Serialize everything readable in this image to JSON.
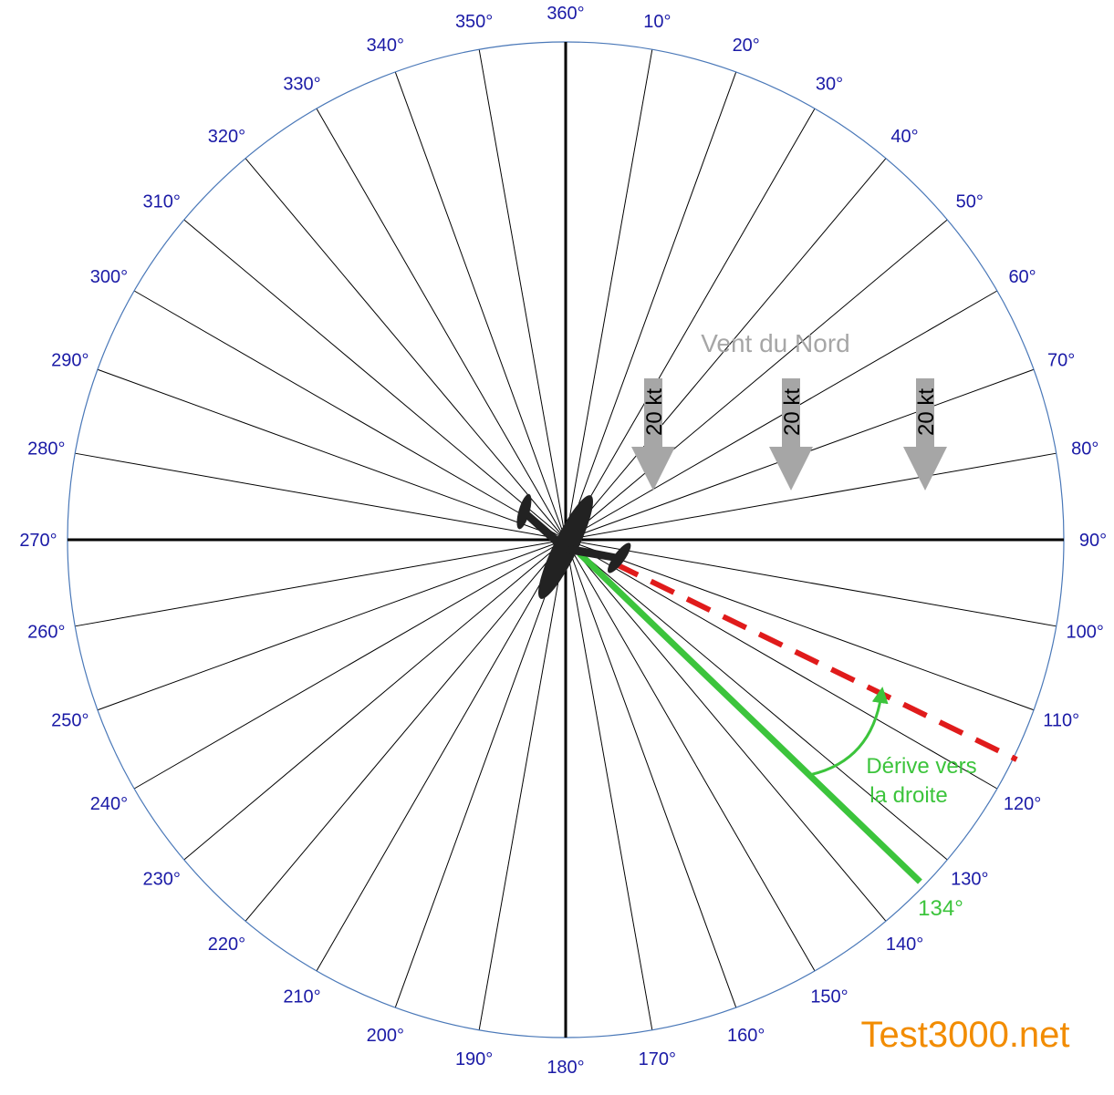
{
  "colors": {
    "degree_labels": "#1a1aa6",
    "circle": "#4a78b8",
    "wind": "#a6a6a6",
    "track_green": "#3cc43c",
    "heading_red": "#e01b1b",
    "brand": "#f28c00"
  },
  "compass": {
    "labels": [
      "360°",
      "10°",
      "20°",
      "30°",
      "40°",
      "50°",
      "60°",
      "70°",
      "80°",
      "90°",
      "100°",
      "110°",
      "120°",
      "130°",
      "140°",
      "150°",
      "160°",
      "170°",
      "180°",
      "190°",
      "200°",
      "210°",
      "220°",
      "230°",
      "240°",
      "250°",
      "260°",
      "270°",
      "280°",
      "290°",
      "300°",
      "310°",
      "320°",
      "330°",
      "340°",
      "350°"
    ]
  },
  "wind": {
    "title": "Vent du Nord",
    "direction_from_deg": 360,
    "speed_label": "20 kt",
    "arrow_count": 3
  },
  "heading": {
    "deg": 116
  },
  "track": {
    "deg": 134,
    "label": "134°"
  },
  "drift": {
    "line1": "Dérive vers",
    "line2": "la droite"
  },
  "brand": {
    "text": "Test3000.net"
  },
  "aircraft": {
    "icon": "airplane-icon"
  }
}
